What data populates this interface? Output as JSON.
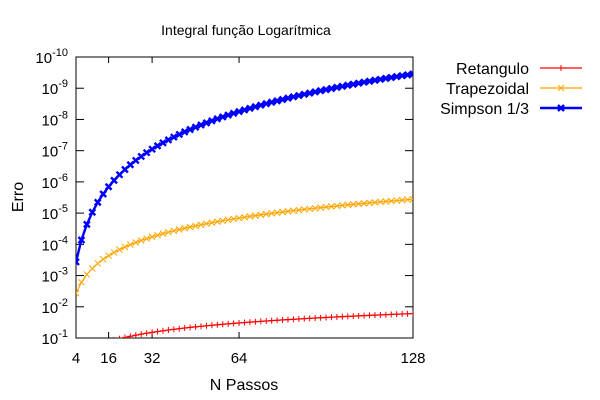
{
  "chart_data": {
    "type": "line",
    "title": "Integral função Logarítmica",
    "xlabel": "N Passos",
    "ylabel": "Erro",
    "xlim": [
      4,
      128
    ],
    "ylim_log10": [
      -10,
      -1
    ],
    "y_scale": "log",
    "x_ticks": [
      {
        "value": 4,
        "label": "4"
      },
      {
        "value": 16,
        "label": "16"
      },
      {
        "value": 32,
        "label": "32"
      },
      {
        "value": 64,
        "label": "64"
      },
      {
        "value": 128,
        "label": "128"
      }
    ],
    "y_ticks": [
      {
        "exp": -1,
        "base": "10",
        "sup": "-1"
      },
      {
        "exp": -2,
        "base": "10",
        "sup": "-2"
      },
      {
        "exp": -3,
        "base": "10",
        "sup": "-3"
      },
      {
        "exp": -4,
        "base": "10",
        "sup": "-4"
      },
      {
        "exp": -5,
        "base": "10",
        "sup": "-5"
      },
      {
        "exp": -6,
        "base": "10",
        "sup": "-6"
      },
      {
        "exp": -7,
        "base": "10",
        "sup": "-7"
      },
      {
        "exp": -8,
        "base": "10",
        "sup": "-8"
      },
      {
        "exp": -9,
        "base": "10",
        "sup": "-9"
      },
      {
        "exp": -10,
        "base": "10",
        "sup": "-10"
      }
    ],
    "grid": false,
    "legend_position": "outside-right-top",
    "x_range": {
      "start": 4,
      "end": 128,
      "step": 2
    },
    "series": [
      {
        "name": "Retangulo",
        "color": "#ff0000",
        "marker": "plus",
        "model": {
          "type": "power",
          "ref_n": 128,
          "ref_value": 0.0165,
          "exponent": -1
        },
        "start_n": 4
      },
      {
        "name": "Trapezoidal",
        "color": "#ffa500",
        "marker": "cross",
        "model": {
          "type": "power",
          "ref_n": 128,
          "ref_value": 3.6e-06,
          "exponent": -2
        },
        "start_n": 4
      },
      {
        "name": "Simpson 1/3",
        "color": "#0000ff",
        "marker": "x-bold",
        "model": {
          "type": "power",
          "ref_n": 128,
          "ref_value": 3.5e-10,
          "exponent": -4
        },
        "start_n": 4
      }
    ]
  }
}
